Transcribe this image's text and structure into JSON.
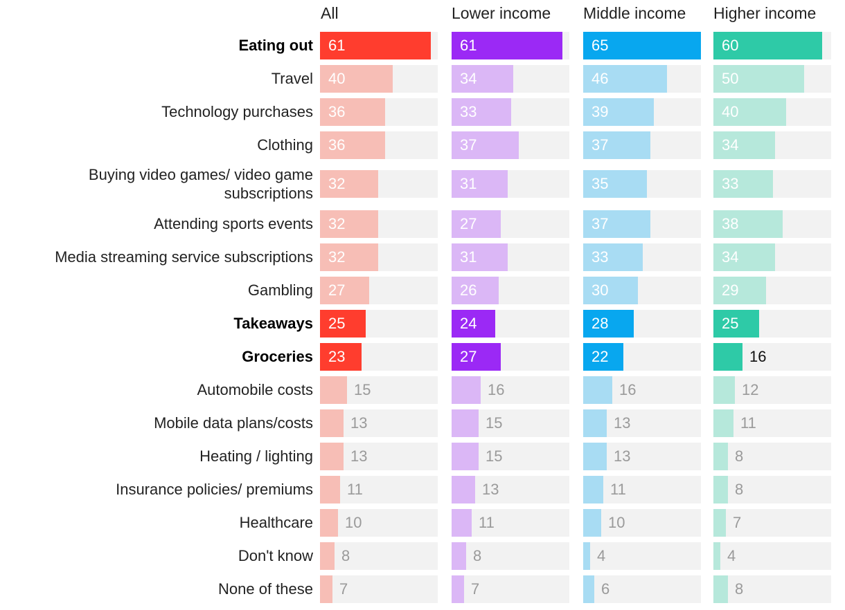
{
  "chart_data": {
    "type": "bar",
    "orientation": "horizontal",
    "xlim": [
      0,
      65
    ],
    "categories": [
      "Eating out",
      "Travel",
      "Technology purchases",
      "Clothing",
      "Buying video games/ video game subscriptions",
      "Attending sports events",
      "Media streaming service subscriptions",
      "Gambling",
      "Takeaways",
      "Groceries",
      "Automobile costs",
      "Mobile data plans/costs",
      "Heating / lighting",
      "Insurance policies/ premiums",
      "Healthcare",
      "Don't know",
      "None of these"
    ],
    "highlighted": [
      "Eating out",
      "Takeaways",
      "Groceries"
    ],
    "series": [
      {
        "name": "All",
        "color": "#ff3d2e",
        "light_color": "#f7beb6",
        "values": [
          61,
          40,
          36,
          36,
          32,
          32,
          32,
          27,
          25,
          23,
          15,
          13,
          13,
          11,
          10,
          8,
          7
        ]
      },
      {
        "name": "Lower income",
        "color": "#9b29f5",
        "light_color": "#dbb7f6",
        "values": [
          61,
          34,
          33,
          37,
          31,
          27,
          31,
          26,
          24,
          27,
          16,
          15,
          15,
          13,
          11,
          8,
          7
        ]
      },
      {
        "name": "Middle income",
        "color": "#08a7ef",
        "light_color": "#a8dcf3",
        "values": [
          65,
          46,
          39,
          37,
          35,
          37,
          33,
          30,
          28,
          22,
          16,
          13,
          13,
          11,
          10,
          4,
          6
        ]
      },
      {
        "name": "Higher income",
        "color": "#2ecaa7",
        "light_color": "#b6e8db",
        "values": [
          60,
          50,
          40,
          34,
          33,
          38,
          34,
          29,
          25,
          16,
          12,
          11,
          8,
          8,
          7,
          4,
          8
        ]
      }
    ]
  }
}
